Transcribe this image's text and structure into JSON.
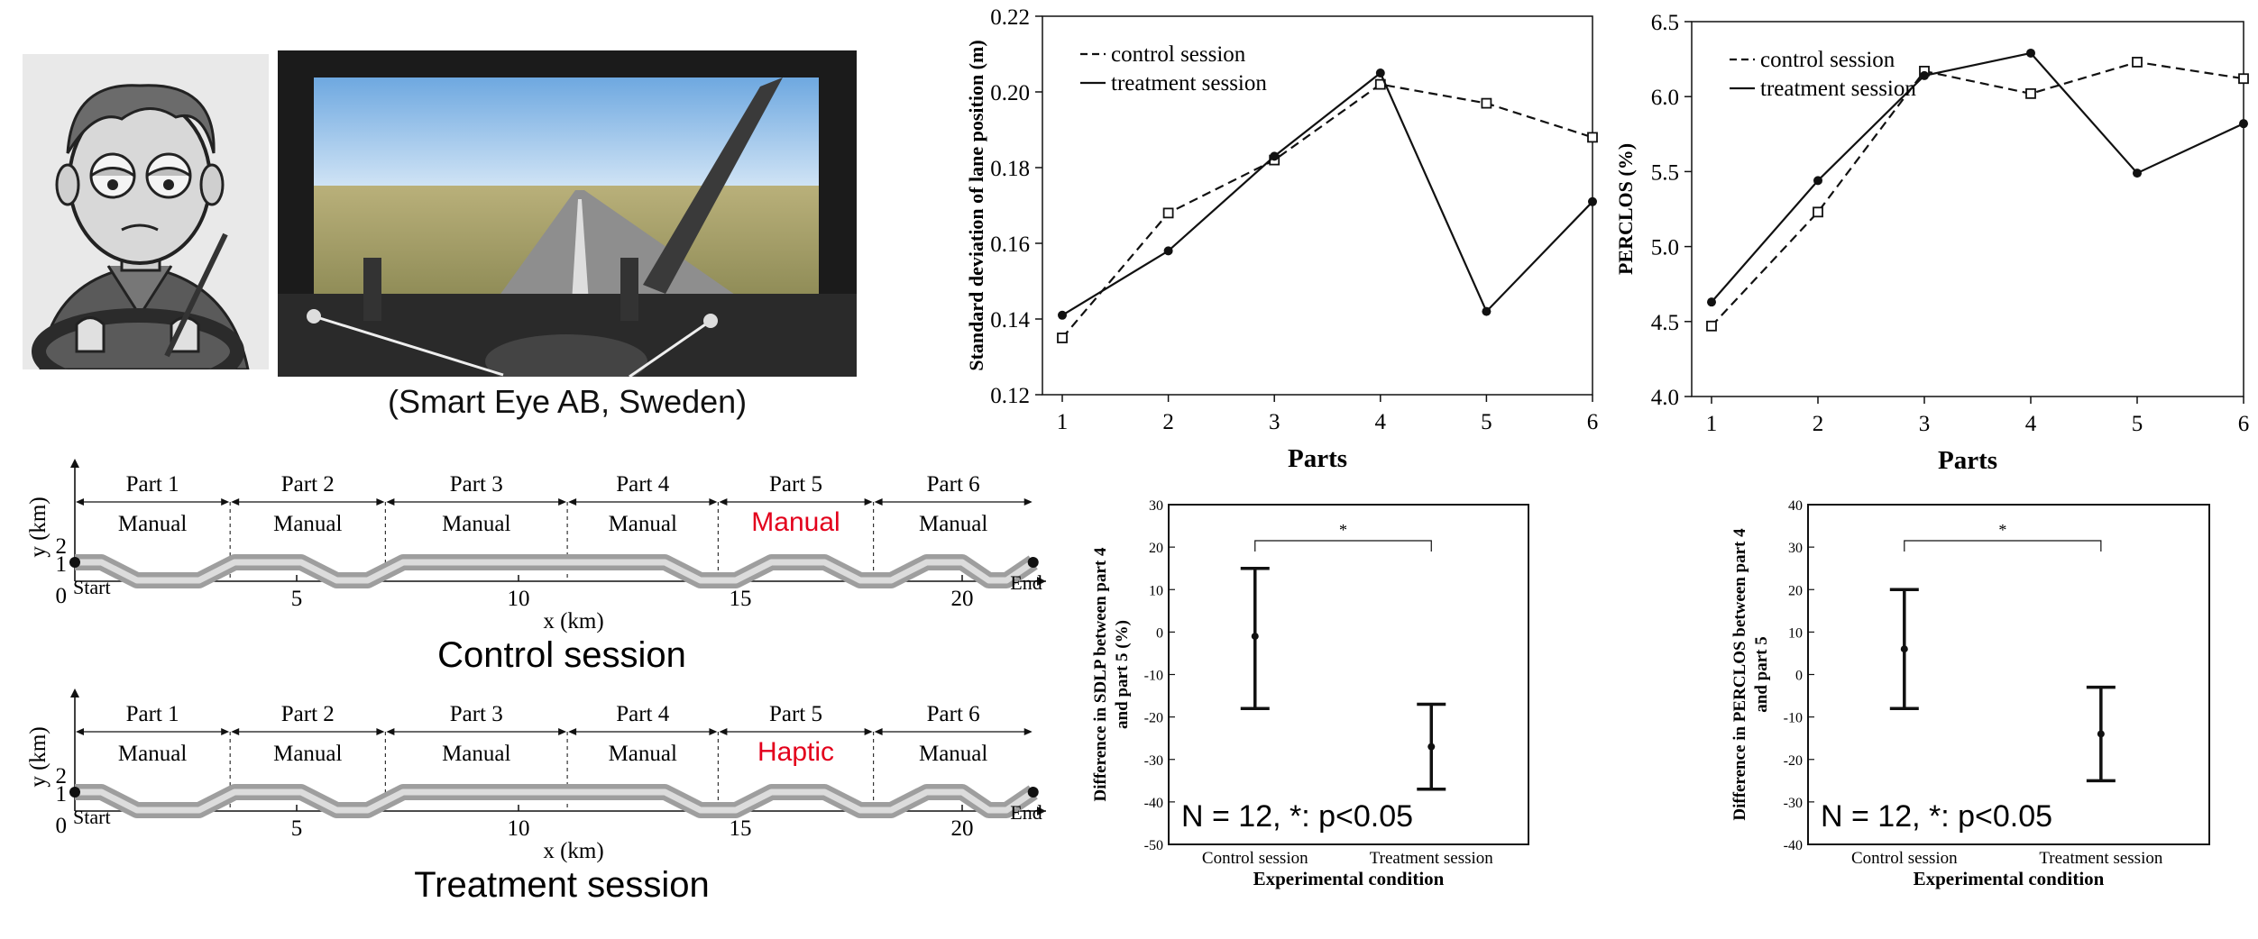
{
  "photo_credit": "(Smart Eye AB, Sweden)",
  "chart_data": [
    {
      "type": "line",
      "id": "sdlp",
      "xlabel": "Parts",
      "ylabel": "Standard deviation of lane position (m)",
      "categories": [
        "1",
        "2",
        "3",
        "4",
        "5",
        "6"
      ],
      "ylim": [
        0.12,
        0.22
      ],
      "yticks": [
        "0.12",
        "0.14",
        "0.16",
        "0.18",
        "0.20",
        "0.22"
      ],
      "legend_position": "top-left",
      "series": [
        {
          "name": "control session",
          "style": "dashed",
          "marker": "square",
          "values": [
            0.135,
            0.168,
            0.182,
            0.202,
            0.197,
            0.188
          ]
        },
        {
          "name": "treatment session",
          "style": "solid",
          "marker": "circle",
          "values": [
            0.141,
            0.158,
            0.183,
            0.205,
            0.142,
            0.171
          ]
        }
      ]
    },
    {
      "type": "line",
      "id": "perclos",
      "xlabel": "Parts",
      "ylabel": "PERCLOS (%)",
      "categories": [
        "1",
        "2",
        "3",
        "4",
        "5",
        "6"
      ],
      "ylim": [
        4.0,
        6.5
      ],
      "yticks": [
        "4.0",
        "4.5",
        "5.0",
        "5.5",
        "6.0",
        "6.5"
      ],
      "legend_position": "top-left",
      "series": [
        {
          "name": "control session",
          "style": "dashed",
          "marker": "square",
          "values": [
            4.47,
            5.23,
            6.17,
            6.02,
            6.23,
            6.12
          ]
        },
        {
          "name": "treatment session",
          "style": "solid",
          "marker": "circle",
          "values": [
            4.63,
            5.44,
            6.14,
            6.29,
            5.49,
            5.82
          ]
        }
      ]
    },
    {
      "type": "errorbar",
      "id": "diff_sdlp",
      "xlabel": "Experimental condition",
      "ylabel": "Difference in SDLP between part 4 and part 5 (%)",
      "categories": [
        "Control session",
        "Treatment session"
      ],
      "ylim": [
        -50,
        30
      ],
      "yticks": [
        "-50",
        "-40",
        "-30",
        "-20",
        "-10",
        "0",
        "10",
        "20",
        "30"
      ],
      "means": [
        -1,
        -27
      ],
      "lower": [
        -18,
        -37
      ],
      "upper": [
        15,
        -17
      ],
      "significance": "*",
      "annotation": "N = 12, *: p<0.05"
    },
    {
      "type": "errorbar",
      "id": "diff_perclos",
      "xlabel": "Experimental condition",
      "ylabel": "Difference in PERCLOS between part 4 and part 5",
      "categories": [
        "Control session",
        "Treatment session"
      ],
      "ylim": [
        -40,
        40
      ],
      "yticks": [
        "-40",
        "-30",
        "-20",
        "-10",
        "0",
        "10",
        "20",
        "30",
        "40"
      ],
      "means": [
        6,
        -14
      ],
      "lower": [
        -8,
        -25
      ],
      "upper": [
        20,
        -3
      ],
      "significance": "*",
      "annotation": "N = 12, *: p<0.05"
    },
    {
      "type": "route",
      "id": "control_route",
      "session_title": "Control session",
      "xlabel": "x (km)",
      "ylabel": "y (km)",
      "xticks": [
        "5",
        "10",
        "15",
        "20"
      ],
      "yticks": [
        "0",
        "1",
        "2"
      ],
      "start_label": "Start",
      "end_label": "End",
      "parts": [
        {
          "name": "Part 1",
          "mode": "Manual",
          "highlight": false
        },
        {
          "name": "Part 2",
          "mode": "Manual",
          "highlight": false
        },
        {
          "name": "Part 3",
          "mode": "Manual",
          "highlight": false
        },
        {
          "name": "Part 4",
          "mode": "Manual",
          "highlight": false
        },
        {
          "name": "Part 5",
          "mode": "Manual",
          "highlight": true
        },
        {
          "name": "Part 6",
          "mode": "Manual",
          "highlight": false
        }
      ]
    },
    {
      "type": "route",
      "id": "treatment_route",
      "session_title": "Treatment session",
      "xlabel": "x (km)",
      "ylabel": "y (km)",
      "xticks": [
        "5",
        "10",
        "15",
        "20"
      ],
      "yticks": [
        "0",
        "1",
        "2"
      ],
      "start_label": "Start",
      "end_label": "End",
      "parts": [
        {
          "name": "Part 1",
          "mode": "Manual",
          "highlight": false
        },
        {
          "name": "Part 2",
          "mode": "Manual",
          "highlight": false
        },
        {
          "name": "Part 3",
          "mode": "Manual",
          "highlight": false
        },
        {
          "name": "Part 4",
          "mode": "Manual",
          "highlight": false
        },
        {
          "name": "Part 5",
          "mode": "Haptic",
          "highlight": true
        },
        {
          "name": "Part 6",
          "mode": "Manual",
          "highlight": false
        }
      ]
    }
  ],
  "colors": {
    "highlight": "#e3001b",
    "axis": "#111111",
    "road_outer": "#9e9e9e",
    "road_inner": "#dcdcdc"
  }
}
